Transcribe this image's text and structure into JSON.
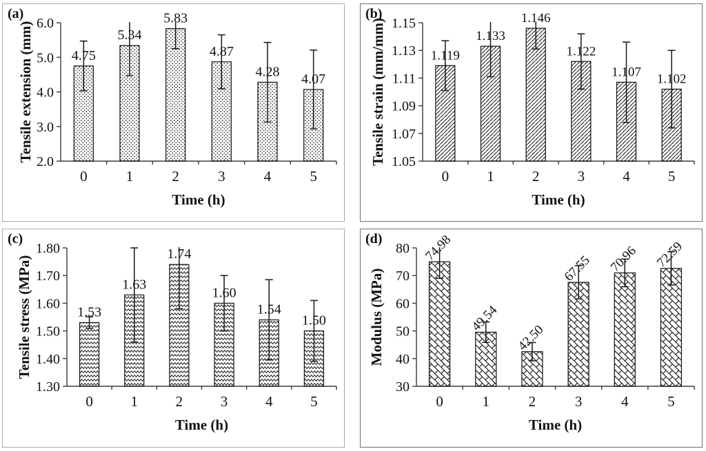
{
  "figure": {
    "ink_color": "#161616",
    "axis_color": "#3a3a3a",
    "panel_border_light": "#a9a9a9",
    "panel_border_dark": "#6f6f6f",
    "background": "#ffffff"
  },
  "chart_data": [
    {
      "panel_label": "(a)",
      "type": "bar",
      "title": "",
      "xlabel": "Time (h)",
      "ylabel": "Tensile extension (mm)",
      "categories": [
        "0",
        "1",
        "2",
        "3",
        "4",
        "5"
      ],
      "values": [
        4.75,
        5.34,
        5.83,
        4.87,
        4.28,
        4.07
      ],
      "errors": [
        0.72,
        0.87,
        0.58,
        0.78,
        1.15,
        1.14
      ],
      "value_labels": [
        "4.75",
        "5.34",
        "5.83",
        "4.87",
        "4.28",
        "4.07"
      ],
      "ylim": [
        2.0,
        6.0
      ],
      "yticks": [
        2.0,
        3.0,
        4.0,
        5.0,
        6.0
      ],
      "ytick_labels": [
        "2.0",
        "3.0",
        "4.0",
        "5.0",
        "6.0"
      ],
      "grid": false,
      "legend": null,
      "bar_pattern": "dots",
      "value_label_rotation": 0
    },
    {
      "panel_label": "(b)",
      "type": "bar",
      "title": "",
      "xlabel": "Time (h)",
      "ylabel": "Tensile strain (mm/mm)",
      "categories": [
        "0",
        "1",
        "2",
        "3",
        "4",
        "5"
      ],
      "values": [
        1.119,
        1.133,
        1.146,
        1.122,
        1.107,
        1.102
      ],
      "errors": [
        0.018,
        0.022,
        0.015,
        0.02,
        0.029,
        0.028
      ],
      "value_labels": [
        "1.119",
        "1.133",
        "1.146",
        "1.122",
        "1.107",
        "1.102"
      ],
      "ylim": [
        1.05,
        1.15
      ],
      "yticks": [
        1.05,
        1.07,
        1.09,
        1.11,
        1.13,
        1.15
      ],
      "ytick_labels": [
        "1.05",
        "1.07",
        "1.09",
        "1.11",
        "1.13",
        "1.15"
      ],
      "grid": false,
      "legend": null,
      "bar_pattern": "diagonal-hatch",
      "value_label_rotation": 0
    },
    {
      "panel_label": "(c)",
      "type": "bar",
      "title": "",
      "xlabel": "Time (h)",
      "ylabel": "Tensile stress (MPa)",
      "categories": [
        "0",
        "1",
        "2",
        "3",
        "4",
        "5"
      ],
      "values": [
        1.53,
        1.63,
        1.74,
        1.6,
        1.54,
        1.5
      ],
      "errors": [
        0.021,
        0.17,
        0.16,
        0.1,
        0.145,
        0.11
      ],
      "value_labels": [
        "1.53",
        "1.63",
        "1.74",
        "1.60",
        "1.54",
        "1.50"
      ],
      "ylim": [
        1.3,
        1.8
      ],
      "yticks": [
        1.3,
        1.4,
        1.5,
        1.6,
        1.7,
        1.8
      ],
      "ytick_labels": [
        "1.30",
        "1.40",
        "1.50",
        "1.60",
        "1.70",
        "1.80"
      ],
      "grid": false,
      "legend": null,
      "bar_pattern": "zigzag",
      "value_label_rotation": 0
    },
    {
      "panel_label": "(d)",
      "type": "bar",
      "title": "",
      "xlabel": "Time (h)",
      "ylabel": "Modulus (MPa)",
      "categories": [
        "0",
        "1",
        "2",
        "3",
        "4",
        "5"
      ],
      "values": [
        74.98,
        49.54,
        42.5,
        67.55,
        70.96,
        72.59
      ],
      "errors": [
        6.0,
        3.7,
        3.3,
        6.0,
        5.0,
        6.0
      ],
      "value_labels": [
        "74.98",
        "49.54",
        "42.50",
        "67.55",
        "70.96",
        "72.59"
      ],
      "ylim": [
        30,
        80
      ],
      "yticks": [
        30,
        40,
        50,
        60,
        70,
        80
      ],
      "ytick_labels": [
        "30",
        "40",
        "50",
        "60",
        "70",
        "80"
      ],
      "grid": false,
      "legend": null,
      "bar_pattern": "diagonal-bricks",
      "value_label_rotation": -45
    }
  ]
}
